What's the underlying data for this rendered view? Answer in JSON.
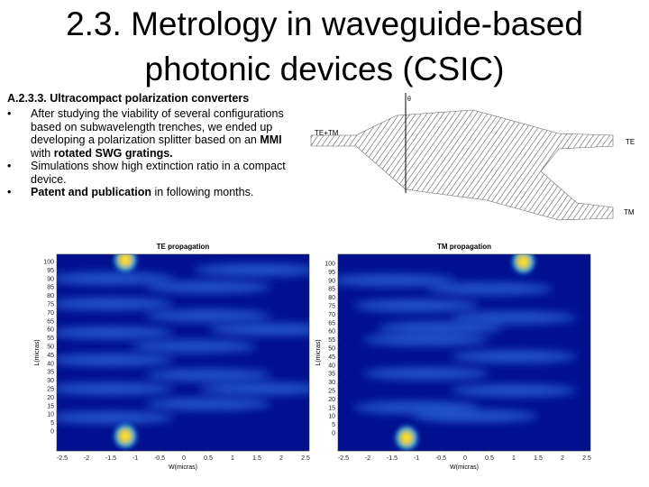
{
  "title": "2.3. Metrology in waveguide-based photonic devices (CSIC)",
  "section": "A.2.3.3. Ultracompact polarization converters",
  "bullets": [
    [
      {
        "text": "After studying the viability of several configurations based on subwavelength trenches, we ended up developing a polarization splitter based on an ",
        "bold": false
      },
      {
        "text": "MMI",
        "bold": true
      },
      {
        "text": " with ",
        "bold": false
      },
      {
        "text": "rotated SWG gratings.",
        "bold": true
      }
    ],
    [
      {
        "text": "Simulations show high extinction ratio in a compact device.",
        "bold": false
      }
    ],
    [
      {
        "text": "Patent and publication",
        "bold": true
      },
      {
        "text": " in following months.",
        "bold": false
      }
    ]
  ],
  "diagram": {
    "input": "TE+TM",
    "output_top": "TE",
    "output_bottom": "TM",
    "angle": "θ"
  },
  "plots": [
    {
      "title": "TE propagation",
      "xlabel": "W(micras)",
      "ylabel": "L(micras)",
      "xticks": [
        -2.5,
        -2,
        -1.5,
        -1,
        -0.5,
        0,
        0.5,
        1,
        1.5,
        2,
        2.5
      ],
      "yticks": [
        100,
        95,
        90,
        85,
        80,
        75,
        70,
        65,
        60,
        55,
        50,
        45,
        40,
        35,
        30,
        25,
        20,
        15,
        10,
        5,
        0
      ]
    },
    {
      "title": "TM propagation",
      "xlabel": "W(micras)",
      "ylabel": "L(micras)",
      "xticks": [
        -2.5,
        -2,
        -1.5,
        -1,
        -0.5,
        0,
        0.5,
        1,
        1.5,
        2,
        2.5
      ],
      "yticks": [
        100,
        95,
        90,
        85,
        80,
        75,
        70,
        65,
        60,
        55,
        50,
        45,
        40,
        35,
        30,
        25,
        20,
        15,
        10,
        5,
        0
      ]
    }
  ]
}
